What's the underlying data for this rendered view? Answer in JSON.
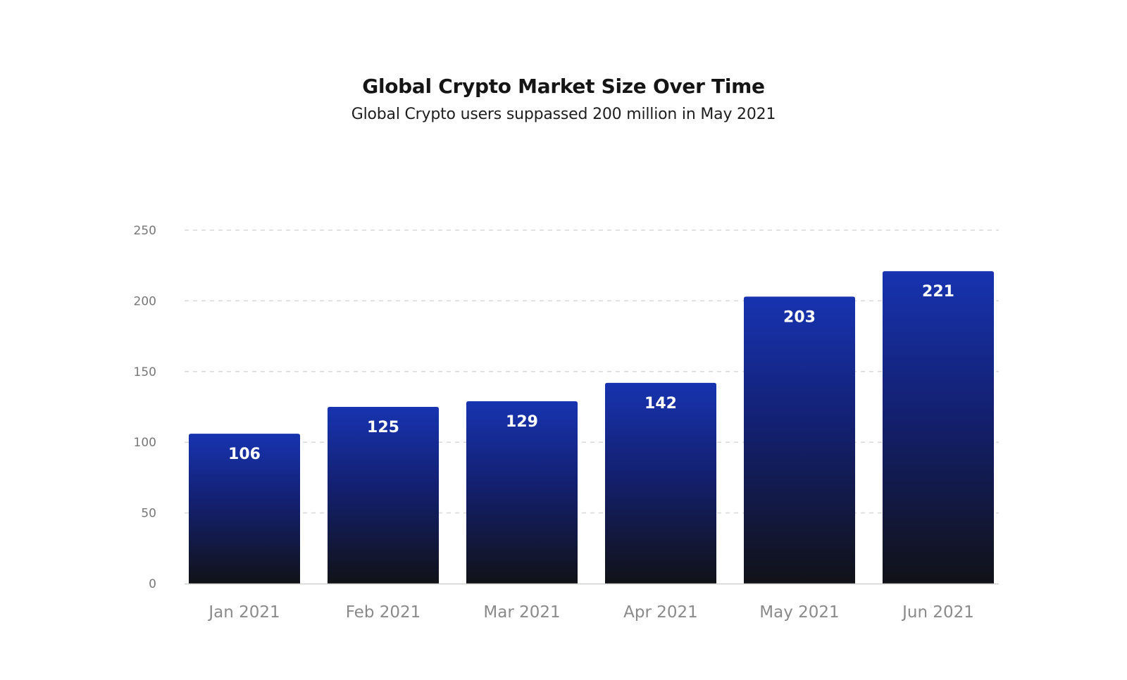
{
  "chart_data": {
    "type": "bar",
    "title": "Global Crypto Market Size Over Time",
    "subtitle": "Global Crypto users suppassed 200 million in May 2021",
    "xlabel": "",
    "ylabel": "",
    "categories": [
      "Jan 2021",
      "Feb 2021",
      "Mar 2021",
      "Apr 2021",
      "May 2021",
      "Jun 2021"
    ],
    "values": [
      106,
      125,
      129,
      142,
      203,
      221
    ],
    "data_labels": [
      "106",
      "125",
      "129",
      "142",
      "203",
      "221"
    ],
    "ylim": [
      0,
      250
    ],
    "yticks": [
      0,
      50,
      100,
      150,
      200,
      250
    ],
    "ytick_labels": [
      "0",
      "50",
      "100",
      "150",
      "200",
      "250"
    ],
    "grid": true,
    "legend": "none",
    "colors": {
      "bar_top": "#1733b0",
      "bar_bottom": "#111217",
      "grid": "#d9d9d9",
      "axis": "#d0d0d0"
    }
  }
}
